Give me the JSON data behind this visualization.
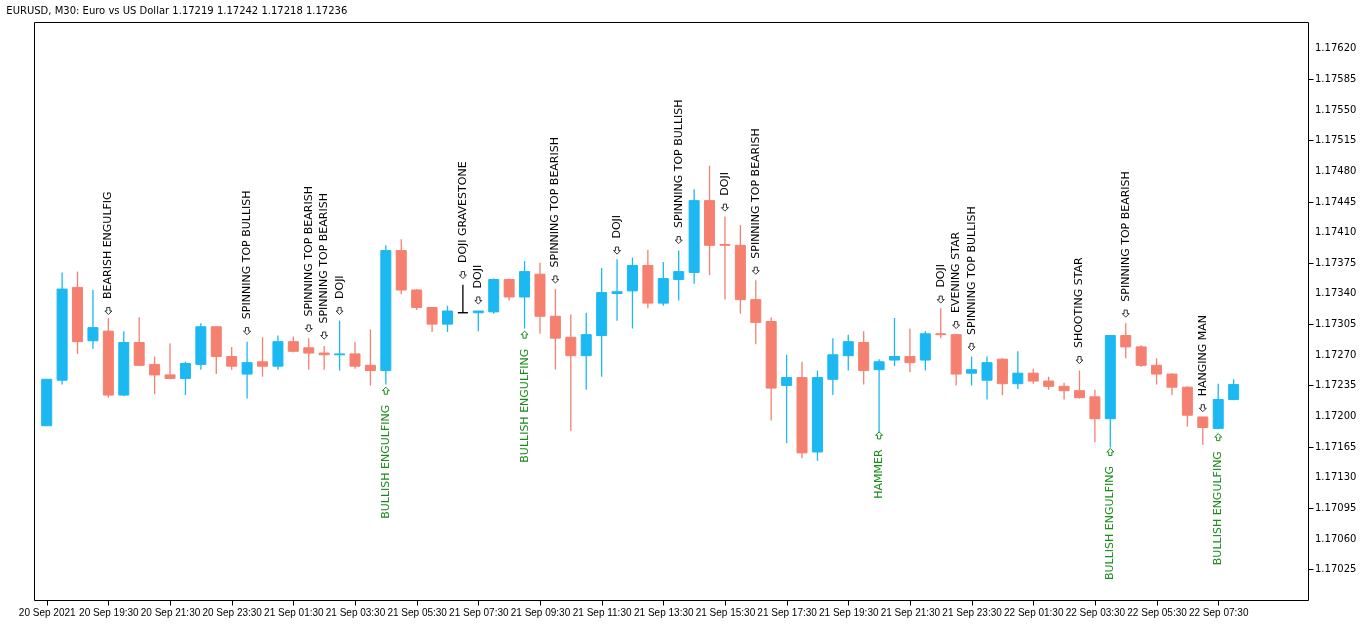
{
  "chart_data": {
    "type": "candlestick",
    "title": "EURUSD, M30:  Euro vs US Dollar  1.17219 1.17242 1.17218 1.17236",
    "x": [
      "2021-09-20T17:30",
      "2021-09-20T18:00",
      "2021-09-20T18:30",
      "2021-09-20T19:00",
      "2021-09-20T19:30",
      "2021-09-20T20:00",
      "2021-09-20T20:30",
      "2021-09-20T21:00",
      "2021-09-20T21:30",
      "2021-09-20T22:00",
      "2021-09-20T22:30",
      "2021-09-20T23:00",
      "2021-09-20T23:30",
      "2021-09-21T00:00",
      "2021-09-21T00:30",
      "2021-09-21T01:00",
      "2021-09-21T01:30",
      "2021-09-21T02:00",
      "2021-09-21T02:30",
      "2021-09-21T03:00",
      "2021-09-21T03:30",
      "2021-09-21T04:00",
      "2021-09-21T04:30",
      "2021-09-21T05:00",
      "2021-09-21T05:30",
      "2021-09-21T06:00",
      "2021-09-21T06:30",
      "2021-09-21T07:00",
      "2021-09-21T07:30",
      "2021-09-21T08:00",
      "2021-09-21T08:30",
      "2021-09-21T09:00",
      "2021-09-21T09:30",
      "2021-09-21T10:00",
      "2021-09-21T10:30",
      "2021-09-21T11:00",
      "2021-09-21T11:30",
      "2021-09-21T12:00",
      "2021-09-21T12:30",
      "2021-09-21T13:00",
      "2021-09-21T13:30",
      "2021-09-21T14:00",
      "2021-09-21T14:30",
      "2021-09-21T15:00",
      "2021-09-21T15:30",
      "2021-09-21T16:00",
      "2021-09-21T16:30",
      "2021-09-21T17:00",
      "2021-09-21T17:30",
      "2021-09-21T18:00",
      "2021-09-21T18:30",
      "2021-09-21T19:00",
      "2021-09-21T19:30",
      "2021-09-21T20:00",
      "2021-09-21T20:30",
      "2021-09-21T21:00",
      "2021-09-21T21:30",
      "2021-09-21T22:00",
      "2021-09-21T22:30",
      "2021-09-21T23:00",
      "2021-09-21T23:30",
      "2021-09-22T00:00",
      "2021-09-22T00:30",
      "2021-09-22T01:00",
      "2021-09-22T01:30",
      "2021-09-22T02:00",
      "2021-09-22T02:30",
      "2021-09-22T03:00",
      "2021-09-22T03:30",
      "2021-09-22T04:00",
      "2021-09-22T04:30",
      "2021-09-22T05:00",
      "2021-09-22T05:30",
      "2021-09-22T06:00",
      "2021-09-22T06:30",
      "2021-09-22T07:00",
      "2021-09-22T07:30",
      "2021-09-22T08:00"
    ],
    "ohlc": [
      [
        1.17189,
        1.17242,
        1.17189,
        1.17242
      ],
      [
        1.17241,
        1.17364,
        1.17236,
        1.17345
      ],
      [
        1.17347,
        1.17365,
        1.17271,
        1.17285
      ],
      [
        1.17286,
        1.17344,
        1.17277,
        1.17301
      ],
      [
        1.17297,
        1.17312,
        1.17221,
        1.17224
      ],
      [
        1.17224,
        1.17297,
        1.17223,
        1.17284
      ],
      [
        1.17284,
        1.17313,
        1.17257,
        1.17258
      ],
      [
        1.17259,
        1.17268,
        1.17225,
        1.17247
      ],
      [
        1.17247,
        1.17283,
        1.17242,
        1.17243
      ],
      [
        1.17243,
        1.17262,
        1.17224,
        1.1726
      ],
      [
        1.17259,
        1.17306,
        1.17253,
        1.17302
      ],
      [
        1.17302,
        1.17302,
        1.17248,
        1.17268
      ],
      [
        1.17268,
        1.17279,
        1.17253,
        1.17257
      ],
      [
        1.17248,
        1.17285,
        1.1722,
        1.17261
      ],
      [
        1.17262,
        1.1729,
        1.17245,
        1.17257
      ],
      [
        1.17257,
        1.17292,
        1.17253,
        1.17285
      ],
      [
        1.17285,
        1.17291,
        1.17273,
        1.17274
      ],
      [
        1.17278,
        1.17289,
        1.17253,
        1.17272
      ],
      [
        1.17272,
        1.1728,
        1.17253,
        1.1727
      ],
      [
        1.1727,
        1.17309,
        1.17252,
        1.17271
      ],
      [
        1.17271,
        1.17285,
        1.17254,
        1.17257
      ],
      [
        1.17258,
        1.17299,
        1.17235,
        1.17252
      ],
      [
        1.17252,
        1.17395,
        1.17236,
        1.17389
      ],
      [
        1.17389,
        1.17402,
        1.17339,
        1.17344
      ],
      [
        1.17344,
        1.17345,
        1.17321,
        1.17324
      ],
      [
        1.17324,
        1.17324,
        1.17296,
        1.17305
      ],
      [
        1.17305,
        1.17326,
        1.17296,
        1.1732
      ],
      [
        1.17318,
        1.1735,
        1.17318,
        1.17318
      ],
      [
        1.17318,
        1.1732,
        1.17297,
        1.1732
      ],
      [
        1.17319,
        1.17357,
        1.17317,
        1.17356
      ],
      [
        1.17356,
        1.17357,
        1.17332,
        1.17336
      ],
      [
        1.17336,
        1.17377,
        1.173,
        1.17365
      ],
      [
        1.17362,
        1.17375,
        1.17294,
        1.17314
      ],
      [
        1.17314,
        1.17345,
        1.17253,
        1.17289
      ],
      [
        1.1729,
        1.17316,
        1.17183,
        1.17269
      ],
      [
        1.17269,
        1.17318,
        1.1723,
        1.17293
      ],
      [
        1.17292,
        1.17369,
        1.17245,
        1.17341
      ],
      [
        1.1734,
        1.17379,
        1.17309,
        1.17342
      ],
      [
        1.17343,
        1.17381,
        1.173,
        1.17372
      ],
      [
        1.17372,
        1.1739,
        1.17323,
        1.17329
      ],
      [
        1.17329,
        1.17376,
        1.17326,
        1.17357
      ],
      [
        1.17356,
        1.17389,
        1.17332,
        1.17365
      ],
      [
        1.17364,
        1.17459,
        1.17351,
        1.17446
      ],
      [
        1.17446,
        1.17486,
        1.17361,
        1.17395
      ],
      [
        1.17396,
        1.17428,
        1.17333,
        1.17395
      ],
      [
        1.17395,
        1.17418,
        1.17317,
        1.17333
      ],
      [
        1.17333,
        1.17355,
        1.17282,
        1.17307
      ],
      [
        1.17308,
        1.17313,
        1.17195,
        1.17232
      ],
      [
        1.17235,
        1.1727,
        1.17169,
        1.17244
      ],
      [
        1.17244,
        1.17262,
        1.17152,
        1.17158
      ],
      [
        1.17159,
        1.17252,
        1.17149,
        1.17244
      ],
      [
        1.17242,
        1.17289,
        1.17224,
        1.1727
      ],
      [
        1.17269,
        1.17293,
        1.17252,
        1.17285
      ],
      [
        1.17284,
        1.17297,
        1.17236,
        1.17252
      ],
      [
        1.17253,
        1.17265,
        1.17181,
        1.17262
      ],
      [
        1.17264,
        1.17312,
        1.17257,
        1.17268
      ],
      [
        1.17268,
        1.173,
        1.1725,
        1.17261
      ],
      [
        1.17264,
        1.17297,
        1.17252,
        1.17294
      ],
      [
        1.17294,
        1.17323,
        1.17289,
        1.17293
      ],
      [
        1.17293,
        1.17293,
        1.17235,
        1.17248
      ],
      [
        1.17249,
        1.17268,
        1.17235,
        1.17253
      ],
      [
        1.17241,
        1.17268,
        1.17219,
        1.17261
      ],
      [
        1.17265,
        1.17266,
        1.17224,
        1.17237
      ],
      [
        1.17237,
        1.17274,
        1.17231,
        1.17249
      ],
      [
        1.17249,
        1.17254,
        1.17237,
        1.1724
      ],
      [
        1.1724,
        1.17245,
        1.1723,
        1.17234
      ],
      [
        1.17234,
        1.17238,
        1.17219,
        1.17229
      ],
      [
        1.17229,
        1.17252,
        1.1722,
        1.17221
      ],
      [
        1.17222,
        1.1723,
        1.1717,
        1.17197
      ],
      [
        1.17197,
        1.17292,
        1.17164,
        1.17292
      ],
      [
        1.17292,
        1.17306,
        1.17266,
        1.17279
      ],
      [
        1.17279,
        1.17281,
        1.17256,
        1.17258
      ],
      [
        1.17258,
        1.17266,
        1.17236,
        1.17248
      ],
      [
        1.17248,
        1.17249,
        1.17224,
        1.17233
      ],
      [
        1.17233,
        1.17234,
        1.17188,
        1.17201
      ],
      [
        1.17199,
        1.17199,
        1.17167,
        1.17187
      ],
      [
        1.17186,
        1.17237,
        1.17185,
        1.17219
      ],
      [
        1.17219,
        1.17242,
        1.17218,
        1.17236
      ]
    ],
    "colors": [
      "#1cb8f2",
      "#1cb8f2",
      "#f58070",
      "#1cb8f2",
      "#f58070",
      "#1cb8f2",
      "#f58070",
      "#f58070",
      "#f58070",
      "#1cb8f2",
      "#1cb8f2",
      "#f58070",
      "#f58070",
      "#1cb8f2",
      "#f58070",
      "#1cb8f2",
      "#f58070",
      "#f58070",
      "#f58070",
      "#1cb8f2",
      "#f58070",
      "#f58070",
      "#1cb8f2",
      "#f58070",
      "#f58070",
      "#f58070",
      "#1cb8f2",
      "#000000",
      "#1cb8f2",
      "#1cb8f2",
      "#f58070",
      "#1cb8f2",
      "#f58070",
      "#f58070",
      "#f58070",
      "#1cb8f2",
      "#1cb8f2",
      "#1cb8f2",
      "#1cb8f2",
      "#f58070",
      "#1cb8f2",
      "#1cb8f2",
      "#1cb8f2",
      "#f58070",
      "#f58070",
      "#f58070",
      "#f58070",
      "#f58070",
      "#1cb8f2",
      "#f58070",
      "#1cb8f2",
      "#1cb8f2",
      "#1cb8f2",
      "#f58070",
      "#1cb8f2",
      "#1cb8f2",
      "#f58070",
      "#1cb8f2",
      "#f58070",
      "#f58070",
      "#1cb8f2",
      "#1cb8f2",
      "#f58070",
      "#1cb8f2",
      "#f58070",
      "#f58070",
      "#f58070",
      "#f58070",
      "#f58070",
      "#1cb8f2",
      "#f58070",
      "#f58070",
      "#f58070",
      "#f58070",
      "#f58070",
      "#f58070",
      "#1cb8f2",
      "#1cb8f2"
    ],
    "xlim": [
      "2021-09-20T17:15",
      "2021-09-22T10:15"
    ],
    "xticks": [
      {
        "value": "2021-09-20T17:30",
        "label": "20 Sep 2021"
      },
      {
        "value": "2021-09-20T19:30",
        "label": "20 Sep 19:30"
      },
      {
        "value": "2021-09-20T21:30",
        "label": "20 Sep 21:30"
      },
      {
        "value": "2021-09-20T23:30",
        "label": "20 Sep 23:30"
      },
      {
        "value": "2021-09-21T01:30",
        "label": "21 Sep 01:30"
      },
      {
        "value": "2021-09-21T03:30",
        "label": "21 Sep 03:30"
      },
      {
        "value": "2021-09-21T05:30",
        "label": "21 Sep 05:30"
      },
      {
        "value": "2021-09-21T07:30",
        "label": "21 Sep 07:30"
      },
      {
        "value": "2021-09-21T09:30",
        "label": "21 Sep 09:30"
      },
      {
        "value": "2021-09-21T11:30",
        "label": "21 Sep 11:30"
      },
      {
        "value": "2021-09-21T13:30",
        "label": "21 Sep 13:30"
      },
      {
        "value": "2021-09-21T15:30",
        "label": "21 Sep 15:30"
      },
      {
        "value": "2021-09-21T17:30",
        "label": "21 Sep 17:30"
      },
      {
        "value": "2021-09-21T19:30",
        "label": "21 Sep 19:30"
      },
      {
        "value": "2021-09-21T21:30",
        "label": "21 Sep 21:30"
      },
      {
        "value": "2021-09-21T23:30",
        "label": "21 Sep 23:30"
      },
      {
        "value": "2021-09-22T01:30",
        "label": "22 Sep 01:30"
      },
      {
        "value": "2021-09-22T03:30",
        "label": "22 Sep 03:30"
      },
      {
        "value": "2021-09-22T05:30",
        "label": "22 Sep 05:30"
      },
      {
        "value": "2021-09-22T07:30",
        "label": "22 Sep 07:30"
      }
    ],
    "ylim": [
      1.1699,
      1.1765
    ],
    "yticks": [
      {
        "value": 1.1762,
        "label": "1.17620"
      },
      1.17585,
      {
        "value": 1.1755,
        "label": "1.17550"
      },
      1.17515,
      {
        "value": 1.1748,
        "label": "1.17480"
      },
      1.17445,
      {
        "value": 1.1741,
        "label": "1.17410"
      },
      1.17375,
      {
        "value": 1.1734,
        "label": "1.17340"
      },
      1.17305,
      {
        "value": 1.1727,
        "label": "1.17270"
      },
      1.17235,
      {
        "value": 1.172,
        "label": "1.17200"
      },
      1.17165,
      {
        "value": 1.1713,
        "label": "1.17130"
      },
      1.17095,
      {
        "value": 1.1706,
        "label": "1.17060"
      },
      1.17025
    ],
    "annotations": [
      {
        "text": "BEARISH ENGULFIG",
        "x": "2021-09-20T19:30",
        "y": 1.1732
      },
      {
        "text": "SPINNING TOP BULLISH",
        "x": "2021-09-21T00:00",
        "y": 1.17297
      },
      {
        "text": "SPINNING TOP BEARISH",
        "x": "2021-09-21T02:00",
        "y": 1.173
      },
      {
        "text": "SPINNING TOP BEARISH",
        "x": "2021-09-21T02:30",
        "y": 1.17292
      },
      {
        "text": "DOJI",
        "x": "2021-09-21T03:00",
        "y": 1.1732
      },
      {
        "text": "BULLISH ENGULFING",
        "x": "2021-09-21T04:30",
        "y": 1.17229
      },
      {
        "text": "DOJI GRAVESTONE",
        "x": "2021-09-21T07:00",
        "y": 1.17361
      },
      {
        "text": "DOJI",
        "x": "2021-09-21T07:30",
        "y": 1.17332
      },
      {
        "text": "BULLISH ENGULFING",
        "x": "2021-09-21T09:00",
        "y": 1.17293
      },
      {
        "text": "SPINNING TOP BEARISH",
        "x": "2021-09-21T10:00",
        "y": 1.17356
      },
      {
        "text": "DOJI",
        "x": "2021-09-21T12:00",
        "y": 1.17389
      },
      {
        "text": "SPINNING TOP BULLISH",
        "x": "2021-09-21T14:00",
        "y": 1.17401
      },
      {
        "text": "DOJI",
        "x": "2021-09-21T15:30",
        "y": 1.17438
      },
      {
        "text": "SPINNING TOP BEARISH",
        "x": "2021-09-21T16:30",
        "y": 1.17366
      },
      {
        "text": "HAMMER",
        "x": "2021-09-21T20:30",
        "y": 1.17178
      },
      {
        "text": "DOJI",
        "x": "2021-09-21T22:30",
        "y": 1.17333
      },
      {
        "text": "EVENING STAR",
        "x": "2021-09-21T23:00",
        "y": 1.17304
      },
      {
        "text": "SPINNING TOP BULLISH",
        "x": "2021-09-21T23:30",
        "y": 1.17279
      },
      {
        "text": "SHOOTING STAR",
        "x": "2021-09-22T03:00",
        "y": 1.17264
      },
      {
        "text": "BULLISH ENGULFING",
        "x": "2021-09-22T04:00",
        "y": 1.17159
      },
      {
        "text": "SPINNING TOP BEARISH",
        "x": "2021-09-22T04:30",
        "y": 1.17317
      },
      {
        "text": "HANGING MAN",
        "x": "2021-09-22T07:00",
        "y": 1.17209
      },
      {
        "text": "BULLISH ENGULFING",
        "x": "2021-09-22T07:30",
        "y": 1.17176
      }
    ]
  }
}
